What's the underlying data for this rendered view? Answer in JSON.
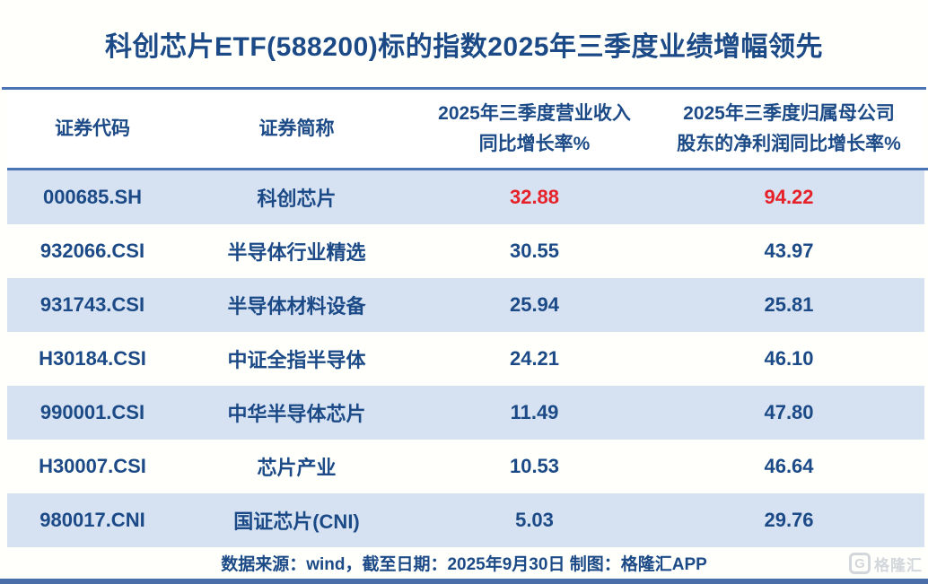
{
  "title": "科创芯片ETF(588200)标的指数2025年三季度业绩增幅领先",
  "table": {
    "headers": {
      "code": "证券代码",
      "name": "证券简称",
      "revenue_line1": "2025年三季度营业收入",
      "revenue_line2": "同比增长率%",
      "profit_line1": "2025年三季度归属母公司",
      "profit_line2": "股东的净利润同比增长率%"
    },
    "rows": [
      {
        "code": "000685.SH",
        "name": "科创芯片",
        "revenue_growth": "32.88",
        "profit_growth": "94.22"
      },
      {
        "code": "932066.CSI",
        "name": "半导体行业精选",
        "revenue_growth": "30.55",
        "profit_growth": "43.97"
      },
      {
        "code": "931743.CSI",
        "name": "半导体材料设备",
        "revenue_growth": "25.94",
        "profit_growth": "25.81"
      },
      {
        "code": "H30184.CSI",
        "name": "中证全指半导体",
        "revenue_growth": "24.21",
        "profit_growth": "46.10"
      },
      {
        "code": "990001.CSI",
        "name": "中华半导体芯片",
        "revenue_growth": "11.49",
        "profit_growth": "47.80"
      },
      {
        "code": "H30007.CSI",
        "name": "芯片产业",
        "revenue_growth": "10.53",
        "profit_growth": "46.64"
      },
      {
        "code": "980017.CNI",
        "name": "国证芯片(CNI)",
        "revenue_growth": "5.03",
        "profit_growth": "29.76"
      }
    ]
  },
  "footer": {
    "source_text": "数据来源：wind，截至日期：2025年9月30日 制图：格隆汇APP"
  },
  "watermark": {
    "logo_letter": "G",
    "logo_text": "格隆汇"
  },
  "colors": {
    "title_navy": "#1b4a87",
    "highlight_red": "#e62129",
    "row_alt_bg": "#d6e2f2",
    "rule_blue": "#4a74b4",
    "bottom_bar_blue": "#4a6fa8",
    "watermark_gray": "#d3d7db"
  },
  "chart_data": {
    "type": "table",
    "title": "科创芯片ETF(588200)标的指数2025年三季度业绩增幅领先",
    "columns": [
      "证券代码",
      "证券简称",
      "2025年三季度营业收入同比增长率%",
      "2025年三季度归属母公司股东的净利润同比增长率%"
    ],
    "rows": [
      [
        "000685.SH",
        "科创芯片",
        32.88,
        94.22
      ],
      [
        "932066.CSI",
        "半导体行业精选",
        30.55,
        43.97
      ],
      [
        "931743.CSI",
        "半导体材料设备",
        25.94,
        25.81
      ],
      [
        "H30184.CSI",
        "中证全指半导体",
        24.21,
        46.1
      ],
      [
        "990001.CSI",
        "中华半导体芯片",
        11.49,
        47.8
      ],
      [
        "H30007.CSI",
        "芯片产业",
        10.53,
        46.64
      ],
      [
        "980017.CNI",
        "国证芯片(CNI)",
        5.03,
        29.76
      ]
    ],
    "highlighted_row": "000685.SH",
    "source": "数据来源：wind，截至日期：2025年9月30日 制图：格隆汇APP"
  }
}
